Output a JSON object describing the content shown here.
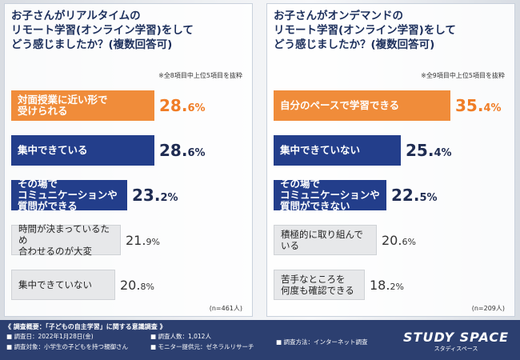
{
  "chart_data": [
    {
      "type": "bar",
      "title": "お子さんがリアルタイムのリモート学習(オンライン学習)をしてどう感じましたか？(複数回答可)",
      "title_lines": [
        "お子さんがリアルタイムの",
        "リモート学習(オンライン学習)をして",
        "どう感じましたか？(複数回答可)"
      ],
      "note": "※全8項目中上位5項目を抜粋",
      "n_label": "(n=461人)",
      "categories": [
        "対面授業に近い形で受けられる",
        "集中できている",
        "その場でコミュニケーションや質問ができる",
        "時間が決まっているため合わせるのが大変",
        "集中できていない"
      ],
      "labels": [
        "対面授業に近い形で\n受けられる",
        "集中できている",
        "その場で\nコミュニケーションや\n質問ができる",
        "時間が決まっているため\n合わせるのが大変",
        "集中できていない"
      ],
      "values": [
        28.6,
        28.6,
        23.2,
        21.9,
        20.8
      ],
      "value_labels": [
        [
          "28.",
          "6%"
        ],
        [
          "28.",
          "6%"
        ],
        [
          "23.",
          "2%"
        ],
        [
          "21.",
          "9%"
        ],
        [
          "20.",
          "8%"
        ]
      ],
      "styles": [
        "orange",
        "blue",
        "blue",
        "gray",
        "gray"
      ],
      "colors": {
        "orange": "#f08c3a",
        "blue": "#233e8b",
        "gray": "#e7e8ea"
      }
    },
    {
      "type": "bar",
      "title": "お子さんがオンデマンドのリモート学習(オンライン学習)をしてどう感じましたか？(複数回答可)",
      "title_lines": [
        "お子さんがオンデマンドの",
        "リモート学習(オンライン学習)をして",
        "どう感じましたか？(複数回答可)"
      ],
      "note": "※全9項目中上位5項目を抜粋",
      "n_label": "(n=209人)",
      "categories": [
        "自分のペースで学習できる",
        "集中できていない",
        "その場でコミュニケーションや質問ができない",
        "積極的に取り組んでいる",
        "苦手なところを何度も確認できる"
      ],
      "labels": [
        "自分のペースで学習できる",
        "集中できていない",
        "その場で\nコミュニケーションや\n質問ができない",
        "積極的に取り組んでいる",
        "苦手なところを\n何度も確認できる"
      ],
      "values": [
        35.4,
        25.4,
        22.5,
        20.6,
        18.2
      ],
      "value_labels": [
        [
          "35.",
          "4%"
        ],
        [
          "25.",
          "4%"
        ],
        [
          "22.",
          "5%"
        ],
        [
          "20.",
          "6%"
        ],
        [
          "18.",
          "2%"
        ]
      ],
      "styles": [
        "orange",
        "blue",
        "blue",
        "gray",
        "gray"
      ],
      "colors": {
        "orange": "#f08c3a",
        "blue": "#233e8b",
        "gray": "#e7e8ea"
      }
    }
  ],
  "footer": {
    "title": "《 調査概要：「子どもの自主学習」に関する意識調査 》",
    "date": "■ 調査日：2022年1月28日(金)",
    "target": "■ 調査対象：小学生の子どもを持つ親御さん",
    "count": "■ 調査人数：1,012人",
    "provider": "■ モニター提供元：ゼネラルリサーチ",
    "method": "■ 調査方法：インターネット調査",
    "brand": "STUDY SPACE",
    "brand_kana": "スタディスペース"
  }
}
